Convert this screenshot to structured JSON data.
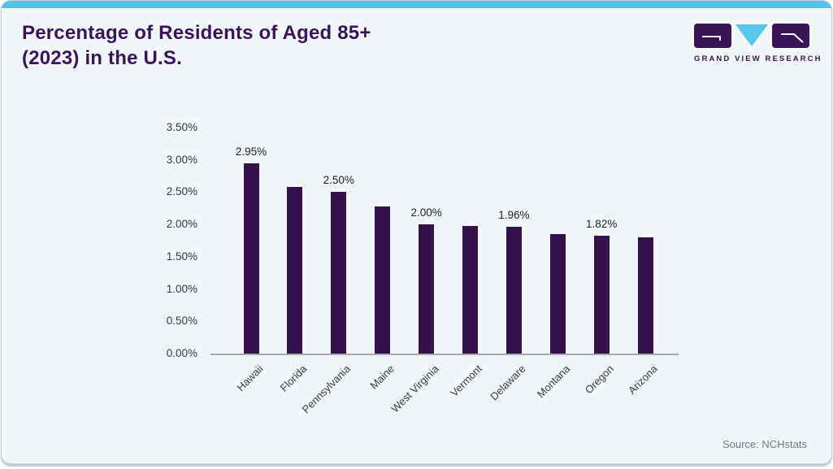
{
  "header": {
    "title_line1": "Percentage of Residents of Aged 85+",
    "title_line2": "(2023) in the U.S.",
    "brand": "GRAND VIEW RESEARCH"
  },
  "footer": {
    "source": "Source: NCHstats"
  },
  "colors": {
    "accent_cyan": "#58c1e8",
    "brand_purple": "#3a1457",
    "bar_purple": "#35114b",
    "card_background": "#f0f6fa",
    "axis_line": "#a8a8a8"
  },
  "chart_data": {
    "type": "bar",
    "title": "Percentage of Residents of Aged 85+ (2023) in the U.S.",
    "categories": [
      "Hawaii",
      "Florida",
      "Pennsylvania",
      "Maine",
      "West Virginia",
      "Vermont",
      "Delaware",
      "Montana",
      "Oregon",
      "Arizona"
    ],
    "values": [
      2.95,
      2.58,
      2.5,
      2.28,
      2.0,
      1.98,
      1.96,
      1.85,
      1.82,
      1.8
    ],
    "data_labels": [
      "2.95%",
      "",
      "2.50%",
      "",
      "2.00%",
      "",
      "1.96%",
      "",
      "1.82%",
      ""
    ],
    "yticks": [
      "0.00%",
      "0.50%",
      "1.00%",
      "1.50%",
      "2.00%",
      "2.50%",
      "3.00%",
      "3.50%"
    ],
    "ylim": [
      0,
      3.5
    ],
    "xlabel": "",
    "ylabel": "",
    "grid": false,
    "legend": "none",
    "bar_color": "#35114b",
    "label_rotation": -45,
    "source": "Source: NCHstats"
  }
}
